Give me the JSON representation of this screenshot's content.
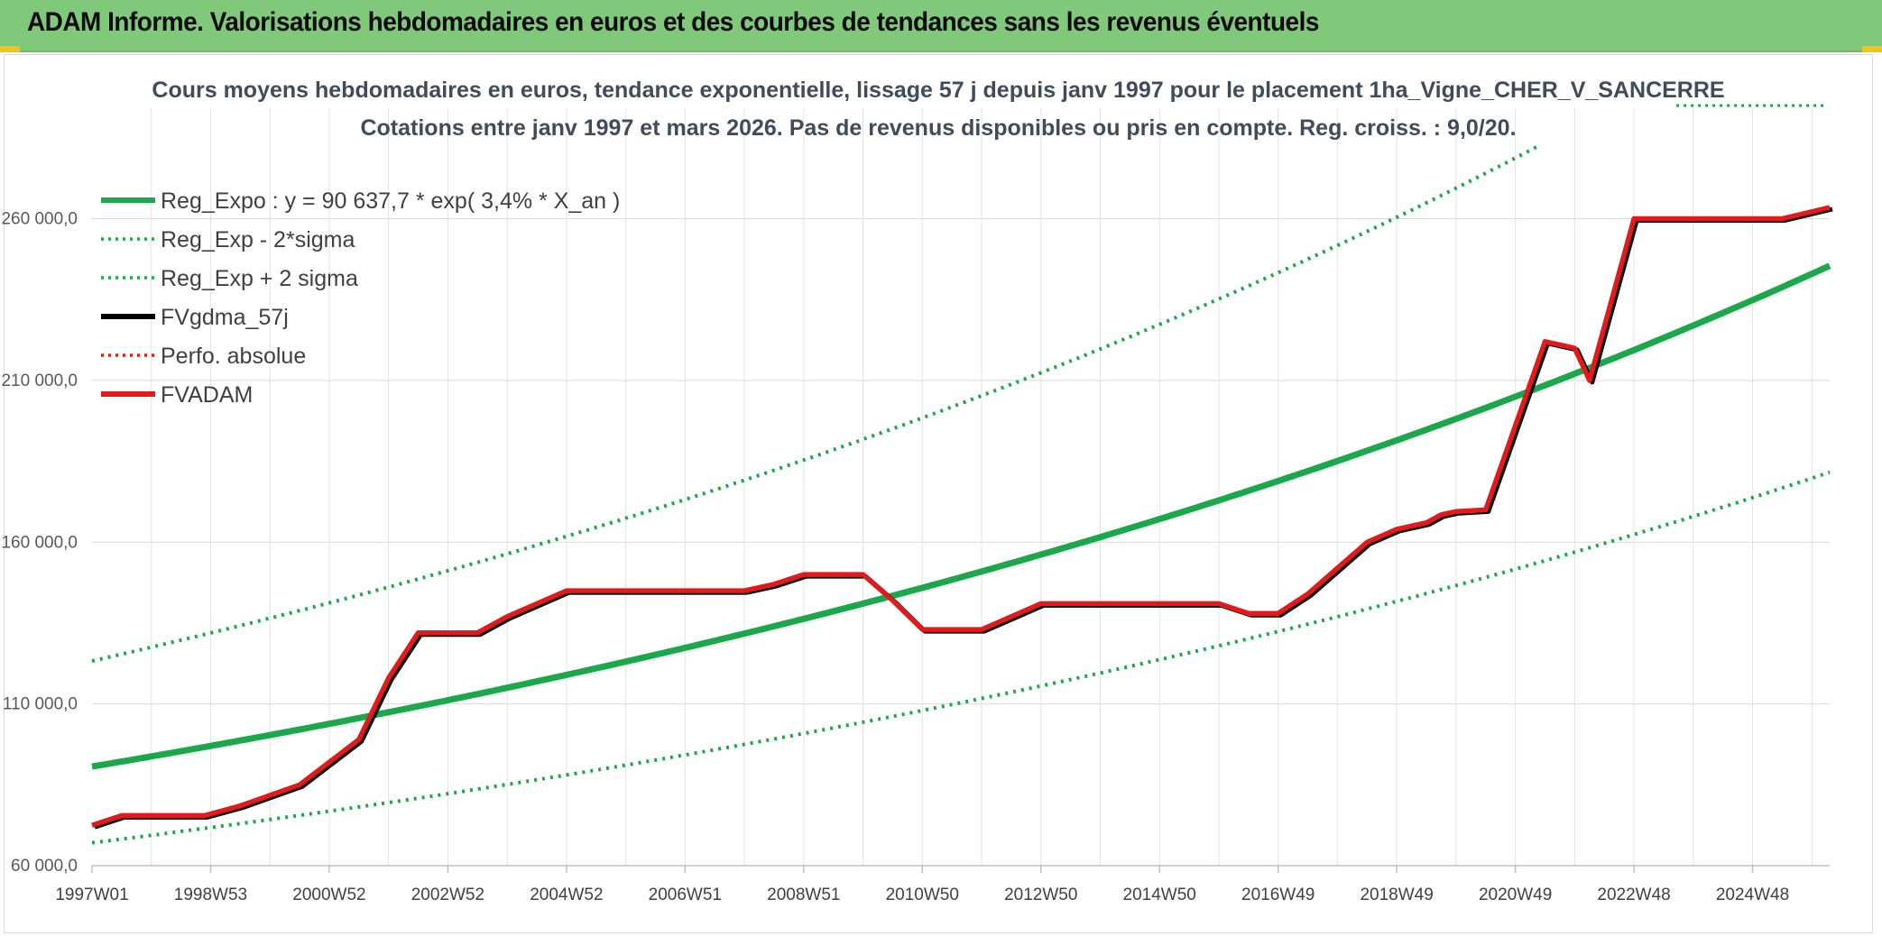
{
  "header": {
    "title": "ADAM Informe. Valorisations hebdomadaires en euros et des courbes de tendances sans les revenus éventuels",
    "background": "#80c97a",
    "accent": "#f1c21b"
  },
  "chart_data": {
    "type": "line",
    "title_line1": "Cours moyens hebdomadaires en euros, tendance exponentielle, lissage 57 j depuis janv 1997 pour le placement 1ha_Vigne_CHER_V_SANCERRE",
    "title_line2": "Cotations entre janv 1997 et mars 2026. Pas de revenus disponibles ou pris en compte. Reg. croiss. : 9,0/20.",
    "x_tick_labels": [
      "1997W01",
      "1998W53",
      "2000W52",
      "2002W52",
      "2004W52",
      "2006W51",
      "2008W51",
      "2010W50",
      "2012W50",
      "2014W50",
      "2016W49",
      "2018W49",
      "2020W49",
      "2022W48",
      "2024W48"
    ],
    "x_tick_years": [
      1997,
      1999,
      2001,
      2003,
      2005,
      2007,
      2009,
      2011,
      2013,
      2015,
      2017,
      2019,
      2021,
      2023,
      2025
    ],
    "xlim": [
      1997,
      2026.3
    ],
    "y_tick_labels": [
      "60 000,0",
      "110 000,0",
      "160 000,0",
      "210 000,0",
      "260 000,0"
    ],
    "y_ticks": [
      60000,
      110000,
      160000,
      210000,
      260000
    ],
    "ylim": [
      60000,
      283000
    ],
    "grid": true,
    "legend_position": "top-left",
    "legend": [
      {
        "name": "Reg_Expo : y = 90 637,7 * exp( 3,4% *  X_an )",
        "color": "#1aa84a",
        "style": "solid"
      },
      {
        "name": "Reg_Exp - 2*sigma",
        "color": "#1aa84a",
        "style": "dotted"
      },
      {
        "name": "Reg_Exp + 2 sigma",
        "color": "#1aa84a",
        "style": "dotted"
      },
      {
        "name": "FVgdma_57j",
        "color": "#000000",
        "style": "solid"
      },
      {
        "name": "Perfo. absolue",
        "color": "#e31a1c",
        "style": "dotted"
      },
      {
        "name": "FVADAM",
        "color": "#e31a1c",
        "style": "solid"
      }
    ],
    "regression": {
      "a": 90637.7,
      "growth": 0.034,
      "lower_factor": 0.74,
      "upper_factor": 1.36
    },
    "series": [
      {
        "name": "FVADAM",
        "color": "#e31a1c",
        "x": [
          1997.0,
          1997.5,
          1998.0,
          1998.9,
          1999.5,
          2000.5,
          2001.5,
          2002.0,
          2002.5,
          2003.0,
          2003.5,
          2004.0,
          2005.0,
          2006.0,
          2007.0,
          2007.5,
          2008.0,
          2008.5,
          2009.0,
          2009.5,
          2010.0,
          2010.5,
          2011.0,
          2011.5,
          2012.0,
          2012.5,
          2013.0,
          2014.0,
          2015.0,
          2015.5,
          2016.0,
          2016.5,
          2017.0,
          2017.5,
          2018.0,
          2018.5,
          2019.0,
          2019.5,
          2019.75,
          2020.0,
          2020.5,
          2021.0,
          2021.5,
          2022.0,
          2022.25,
          2023.0,
          2024.0,
          2025.0,
          2025.5,
          2026.3
        ],
        "y": [
          72500,
          75500,
          75500,
          75500,
          78500,
          85000,
          99000,
          118000,
          132000,
          132000,
          132000,
          137000,
          145000,
          145000,
          145000,
          145000,
          145000,
          147000,
          150000,
          150000,
          150000,
          142000,
          133000,
          133000,
          133000,
          137000,
          141000,
          141000,
          141000,
          141000,
          141000,
          138000,
          138000,
          144000,
          152000,
          160000,
          164000,
          166000,
          168500,
          169500,
          170000,
          196000,
          222000,
          220000,
          210000,
          260000,
          260000,
          260000,
          260000,
          263500
        ]
      }
    ]
  }
}
